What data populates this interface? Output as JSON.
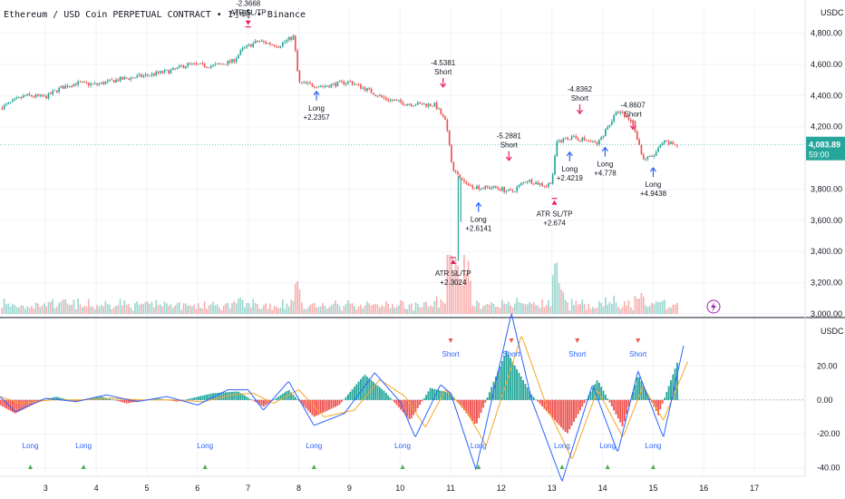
{
  "header": {
    "symbol_line": "Ethereum / USD Coin PERPETUAL CONTRACT • 1小時 • Binance"
  },
  "price_axis": {
    "unit": "USDC",
    "ticks": [
      "4,800.00",
      "4,600.00",
      "4,400.00",
      "4,200.00",
      "3,800.00",
      "3,600.00",
      "3,400.00",
      "3,200.00",
      "3,000.00"
    ],
    "tick_values": [
      4800,
      4600,
      4400,
      4200,
      3800,
      3600,
      3400,
      3200,
      3000
    ],
    "current_price": "4,083.89",
    "countdown": "59:00",
    "current_value": 4083.89,
    "ylim": [
      3000,
      4850
    ]
  },
  "osc_axis": {
    "unit": "USDC",
    "ticks": [
      "20.00",
      "0.00",
      "-20.00",
      "-40.00"
    ],
    "tick_values": [
      20,
      0,
      -20,
      -40
    ],
    "ylim": [
      -45,
      40
    ]
  },
  "time_axis": {
    "labels": [
      "3",
      "4",
      "5",
      "6",
      "7",
      "8",
      "9",
      "10",
      "11",
      "12",
      "13",
      "14",
      "15",
      "16",
      "17"
    ],
    "positions": [
      3,
      4,
      5,
      6,
      7,
      8,
      9,
      10,
      11,
      12,
      13,
      14,
      15,
      16,
      17
    ],
    "xlim": [
      2.1,
      18.0
    ]
  },
  "colors": {
    "up": "#26a69a",
    "down": "#ef5350",
    "macd": "#2962ff",
    "signal": "#f5a623",
    "marker": "#e91e63",
    "long_arrow": "#2962ff",
    "price_tag": "#26a69a"
  },
  "chart_data": [
    {
      "type": "candlestick",
      "title": "Ethereum / USD Coin PERPETUAL CONTRACT • 1小時 • Binance",
      "ylabel": "USDC",
      "ylim": [
        3000,
        4850
      ],
      "price_path": [
        [
          2.1,
          4320
        ],
        [
          2.6,
          4400
        ],
        [
          3.0,
          4390
        ],
        [
          3.3,
          4450
        ],
        [
          3.6,
          4480
        ],
        [
          4.0,
          4470
        ],
        [
          4.4,
          4500
        ],
        [
          5.0,
          4530
        ],
        [
          5.5,
          4560
        ],
        [
          5.8,
          4600
        ],
        [
          6.3,
          4590
        ],
        [
          6.7,
          4620
        ],
        [
          6.9,
          4700
        ],
        [
          7.2,
          4750
        ],
        [
          7.6,
          4720
        ],
        [
          7.9,
          4780
        ],
        [
          8.0,
          4480
        ],
        [
          8.5,
          4460
        ],
        [
          9.0,
          4490
        ],
        [
          9.4,
          4430
        ],
        [
          9.7,
          4380
        ],
        [
          10.1,
          4350
        ],
        [
          10.7,
          4340
        ],
        [
          10.9,
          4230
        ],
        [
          11.05,
          3920
        ],
        [
          11.3,
          3830
        ],
        [
          11.6,
          3810
        ],
        [
          11.9,
          3810
        ],
        [
          12.2,
          3780
        ],
        [
          12.5,
          3860
        ],
        [
          12.9,
          3820
        ],
        [
          13.0,
          3860
        ],
        [
          13.1,
          4100
        ],
        [
          13.3,
          4130
        ],
        [
          13.6,
          4120
        ],
        [
          13.9,
          4090
        ],
        [
          14.1,
          4200
        ],
        [
          14.3,
          4300
        ],
        [
          14.6,
          4230
        ],
        [
          14.8,
          3990
        ],
        [
          15.0,
          4010
        ],
        [
          15.2,
          4100
        ],
        [
          15.5,
          4083.89
        ]
      ],
      "wicks": [
        [
          11.15,
          3340
        ],
        [
          11.2,
          3590
        ]
      ],
      "volume_note": "volume histogram at bottom of price pane"
    },
    {
      "type": "histogram",
      "ylabel": "USDC",
      "ylim": [
        -45,
        40
      ],
      "histogram_path": [
        [
          2.1,
          -3
        ],
        [
          2.4,
          -8
        ],
        [
          2.8,
          -2
        ],
        [
          3.2,
          2
        ],
        [
          3.6,
          -1
        ],
        [
          4.1,
          2
        ],
        [
          4.6,
          -2
        ],
        [
          5.2,
          1
        ],
        [
          5.6,
          -1
        ],
        [
          6.3,
          4
        ],
        [
          6.8,
          5
        ],
        [
          7.3,
          -4
        ],
        [
          7.8,
          6
        ],
        [
          8.3,
          -10
        ],
        [
          8.8,
          -3
        ],
        [
          9.3,
          15
        ],
        [
          9.7,
          5
        ],
        [
          10.2,
          -12
        ],
        [
          10.6,
          7
        ],
        [
          11.0,
          4
        ],
        [
          11.5,
          -15
        ],
        [
          12.1,
          29
        ],
        [
          12.6,
          3
        ],
        [
          13.3,
          -20
        ],
        [
          13.9,
          12
        ],
        [
          14.4,
          -16
        ],
        [
          14.7,
          15
        ],
        [
          15.1,
          -9
        ],
        [
          15.5,
          24
        ],
        [
          15.5,
          0
        ]
      ],
      "macd_path": [
        [
          2.1,
          2
        ],
        [
          2.4,
          -7
        ],
        [
          3.0,
          1
        ],
        [
          3.6,
          -1
        ],
        [
          4.2,
          3
        ],
        [
          4.8,
          -1
        ],
        [
          5.4,
          2
        ],
        [
          6.0,
          -3
        ],
        [
          6.6,
          6
        ],
        [
          7.0,
          6
        ],
        [
          7.3,
          -6
        ],
        [
          7.8,
          11
        ],
        [
          8.3,
          -15
        ],
        [
          8.9,
          -8
        ],
        [
          9.5,
          16
        ],
        [
          10.0,
          -1
        ],
        [
          10.3,
          -22
        ],
        [
          10.8,
          9
        ],
        [
          11.0,
          4
        ],
        [
          11.5,
          -41
        ],
        [
          12.2,
          51
        ],
        [
          12.6,
          0
        ],
        [
          13.2,
          -48
        ],
        [
          13.8,
          9
        ],
        [
          14.3,
          -31
        ],
        [
          14.7,
          17
        ],
        [
          15.2,
          -22
        ],
        [
          15.6,
          32
        ]
      ],
      "signal_path": [
        [
          2.1,
          2
        ],
        [
          2.5,
          -2
        ],
        [
          3.1,
          0
        ],
        [
          3.7,
          0
        ],
        [
          4.3,
          1
        ],
        [
          4.9,
          0
        ],
        [
          5.5,
          0
        ],
        [
          6.1,
          -1
        ],
        [
          6.7,
          3
        ],
        [
          7.1,
          4
        ],
        [
          7.5,
          -2
        ],
        [
          8.0,
          6
        ],
        [
          8.5,
          -10
        ],
        [
          9.1,
          -6
        ],
        [
          9.6,
          12
        ],
        [
          10.1,
          2
        ],
        [
          10.5,
          -16
        ],
        [
          10.9,
          6
        ],
        [
          11.3,
          -6
        ],
        [
          11.7,
          -27
        ],
        [
          12.4,
          38
        ],
        [
          12.9,
          -4
        ],
        [
          13.4,
          -35
        ],
        [
          13.9,
          6
        ],
        [
          14.4,
          -22
        ],
        [
          14.8,
          8
        ],
        [
          15.2,
          -12
        ],
        [
          15.7,
          24
        ]
      ],
      "long_markers": [
        2.7,
        3.75,
        6.15,
        8.3,
        10.05,
        11.55,
        13.2,
        14.1,
        15.0
      ],
      "short_markers": [
        11.0,
        12.2,
        13.5,
        14.7
      ]
    }
  ],
  "signals": {
    "price_labels": [
      {
        "day": 7.0,
        "price": 4800,
        "lines": [
          "-2.3668",
          "ATR SL/TP"
        ],
        "pos": "above"
      },
      {
        "day": 8.35,
        "price": 4450,
        "lines": [
          "Long",
          "+2.2357"
        ],
        "pos": "below"
      },
      {
        "day": 10.85,
        "price": 4420,
        "lines": [
          "-4.5381",
          "Short"
        ],
        "pos": "above"
      },
      {
        "day": 11.05,
        "price": 3390,
        "lines": [
          "ATR SL/TP",
          "+2.3024"
        ],
        "pos": "below"
      },
      {
        "day": 11.55,
        "price": 3735,
        "lines": [
          "Long",
          "+2.6141"
        ],
        "pos": "below"
      },
      {
        "day": 12.15,
        "price": 3950,
        "lines": [
          "-5.2881",
          "Short"
        ],
        "pos": "above"
      },
      {
        "day": 13.05,
        "price": 3770,
        "lines": [
          "ATR SL/TP",
          "+2.674"
        ],
        "pos": "below"
      },
      {
        "day": 13.35,
        "price": 4060,
        "lines": [
          "Long",
          "+2.4219"
        ],
        "pos": "below"
      },
      {
        "day": 13.55,
        "price": 4250,
        "lines": [
          "-4.8362",
          "Short"
        ],
        "pos": "above"
      },
      {
        "day": 14.05,
        "price": 4090,
        "lines": [
          "Long",
          "+4.778"
        ],
        "pos": "below"
      },
      {
        "day": 14.6,
        "price": 4150,
        "lines": [
          "-4.8607",
          "Short"
        ],
        "pos": "above"
      },
      {
        "day": 15.0,
        "price": 3960,
        "lines": [
          "Long",
          "+4.9438"
        ],
        "pos": "below"
      }
    ],
    "long_label": "Long",
    "short_label": "Short"
  }
}
